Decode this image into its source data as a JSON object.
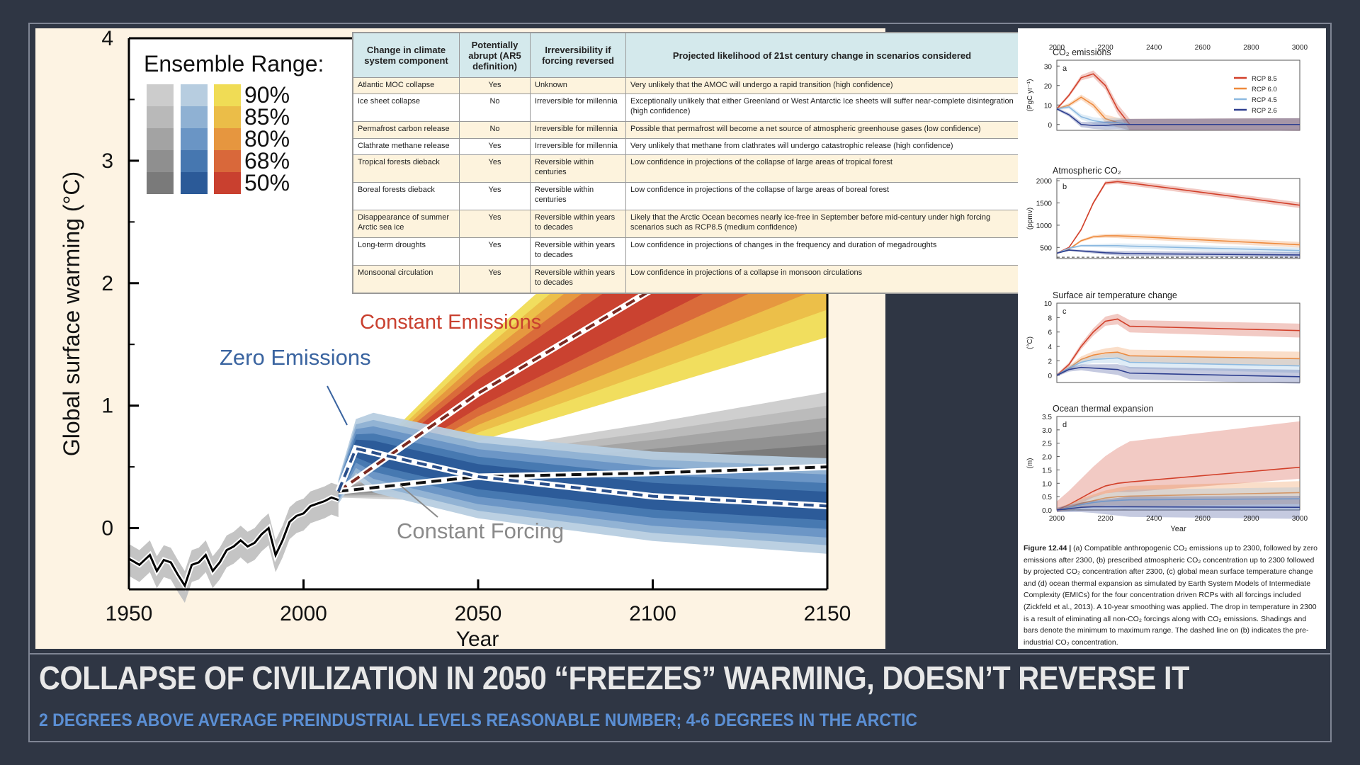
{
  "slide": {
    "title": "COLLAPSE OF CIVILIZATION IN 2050 “FREEZES” WARMING, DOESN’T REVERSE IT",
    "subtitle": "2 DEGREES ABOVE AVERAGE PREINDUSTRIAL LEVELS REASONABLE NUMBER; 4-6 DEGREES IN THE ARCTIC"
  },
  "colors": {
    "background": "#2f3644",
    "title": "#e8e8e8",
    "subtitle": "#5b8fd4",
    "warm": "#c9402f",
    "cool": "#2f5f98",
    "grey": "#8a8a8a"
  },
  "chart_data": [
    {
      "type": "line",
      "ylabel": "Global surface warming (°C)",
      "xlabel": "Year",
      "xlim": [
        1950,
        2150
      ],
      "ylim": [
        -0.5,
        4
      ],
      "x_ticks": [
        "1950",
        "2000",
        "2050",
        "2100",
        "2150"
      ],
      "y_ticks": [
        "0",
        "1",
        "2",
        "3",
        "4"
      ],
      "legend_title": "Ensemble Range:",
      "legend_levels": [
        "90%",
        "85%",
        "80%",
        "68%",
        "50%"
      ],
      "legend_palettes": {
        "grey": [
          "#cccccc",
          "#b9b9b9",
          "#a3a3a3",
          "#8f8f8f",
          "#7a7a7a"
        ],
        "blue": [
          "#b7cde0",
          "#8fb1d3",
          "#6a95c5",
          "#4677b0",
          "#2b5a98"
        ],
        "warm": [
          "#f0dc55",
          "#ebbd48",
          "#e6963f",
          "#d9683a",
          "#c9402f"
        ]
      },
      "annotations": [
        "Constant Emissions",
        "Zero Emissions",
        "Constant Forcing"
      ],
      "historical": {
        "x": [
          1950,
          1953,
          1956,
          1958,
          1960,
          1962,
          1964,
          1966,
          1968,
          1970,
          1972,
          1974,
          1976,
          1978,
          1980,
          1982,
          1984,
          1986,
          1988,
          1990,
          1992,
          1994,
          1996,
          1998,
          2000,
          2002,
          2004,
          2006,
          2008,
          2010
        ],
        "y": [
          -0.25,
          -0.3,
          -0.22,
          -0.35,
          -0.26,
          -0.28,
          -0.38,
          -0.47,
          -0.3,
          -0.28,
          -0.22,
          -0.35,
          -0.28,
          -0.18,
          -0.15,
          -0.1,
          -0.15,
          -0.12,
          -0.05,
          0.0,
          -0.22,
          -0.1,
          0.05,
          0.1,
          0.12,
          0.18,
          0.2,
          0.22,
          0.25,
          0.23
        ]
      },
      "series": [
        {
          "name": "Constant Emissions",
          "x": [
            2010,
            2050,
            2100,
            2150
          ],
          "y": [
            0.3,
            1.1,
            1.95,
            2.8
          ]
        },
        {
          "name": "Zero Emissions",
          "x": [
            2010,
            2015,
            2030,
            2050,
            2100,
            2150
          ],
          "y": [
            0.3,
            0.65,
            0.55,
            0.42,
            0.26,
            0.18
          ]
        },
        {
          "name": "Constant Forcing",
          "x": [
            2010,
            2050,
            2100,
            2150
          ],
          "y": [
            0.3,
            0.42,
            0.45,
            0.5
          ]
        }
      ]
    },
    {
      "type": "table",
      "columns": [
        "Change in climate system component",
        "Potentially abrupt (AR5 definition)",
        "Irreversibility if forcing reversed",
        "Projected likelihood of 21st century change in scenarios considered"
      ],
      "rows": [
        [
          "Atlantic MOC collapse",
          "Yes",
          "Unknown",
          "Very unlikely that the AMOC will undergo a rapid transition (high confidence)"
        ],
        [
          "Ice sheet collapse",
          "No",
          "Irreversible for millennia",
          "Exceptionally unlikely that either Greenland or West Antarctic Ice sheets will suffer near-complete disintegration (high confidence)"
        ],
        [
          "Permafrost carbon release",
          "No",
          "Irreversible for millennia",
          "Possible that permafrost will become a net source of atmospheric greenhouse gases (low confidence)"
        ],
        [
          "Clathrate methane release",
          "Yes",
          "Irreversible for millennia",
          "Very unlikely that methane from clathrates will undergo catastrophic release (high confidence)"
        ],
        [
          "Tropical forests dieback",
          "Yes",
          "Reversible within centuries",
          "Low confidence in projections of the collapse of large areas of tropical forest"
        ],
        [
          "Boreal forests dieback",
          "Yes",
          "Reversible within centuries",
          "Low confidence in projections of the collapse of large areas of boreal forest"
        ],
        [
          "Disappearance of summer Arctic sea ice",
          "Yes",
          "Reversible within years to decades",
          "Likely that the Arctic Ocean becomes nearly ice-free in September before mid-century under high forcing scenarios such as RCP8.5 (medium confidence)"
        ],
        [
          "Long-term droughts",
          "Yes",
          "Reversible within years to decades",
          "Low confidence in projections of changes in the frequency and duration of megadroughts"
        ],
        [
          "Monsoonal circulation",
          "Yes",
          "Reversible within years to decades",
          "Low confidence in projections of a collapse in monsoon circulations"
        ]
      ]
    },
    {
      "type": "line",
      "panels": [
        {
          "label": "a",
          "title": "CO₂ emissions",
          "ylabel": "(PgC yr⁻¹)",
          "yticks": [
            "0",
            "10",
            "20",
            "30"
          ],
          "ylim": [
            -3,
            33
          ]
        },
        {
          "label": "b",
          "title": "Atmospheric CO₂",
          "ylabel": "(ppmv)",
          "yticks": [
            "500",
            "1000",
            "1500",
            "2000"
          ],
          "ylim": [
            250,
            2050
          ]
        },
        {
          "label": "c",
          "title": "Surface air temperature change",
          "ylabel": "(°C)",
          "yticks": [
            "0",
            "2",
            "4",
            "6",
            "8",
            "10"
          ],
          "ylim": [
            -1,
            10
          ]
        },
        {
          "label": "d",
          "title": "Ocean thermal expansion",
          "ylabel": "(m)",
          "yticks": [
            "0.0",
            "0.5",
            "1.0",
            "1.5",
            "2.0",
            "2.5",
            "3.0",
            "3.5"
          ],
          "ylim": [
            0,
            3.5
          ]
        }
      ],
      "x_ticks": [
        "2000",
        "2200",
        "2400",
        "2600",
        "2800",
        "3000"
      ],
      "xlabel": "Year",
      "xlim": [
        2000,
        3000
      ],
      "legend": [
        "RCP 8.5",
        "RCP 6.0",
        "RCP 4.5",
        "RCP 2.6"
      ],
      "series_colors": [
        "#d2402a",
        "#ee8a3c",
        "#8cb9e0",
        "#2e3f8f"
      ],
      "series": [
        {
          "name": "RCP 8.5",
          "x": [
            2000,
            2050,
            2100,
            2150,
            2200,
            2250,
            2300,
            3000
          ],
          "emissions": [
            8,
            15,
            24,
            26,
            20,
            8,
            0,
            0
          ],
          "co2": [
            370,
            500,
            900,
            1500,
            1950,
            1980,
            1950,
            1450
          ],
          "temp": [
            0,
            1.5,
            4,
            6,
            7.5,
            7.8,
            6.8,
            6.2
          ],
          "ote": [
            0,
            0.2,
            0.45,
            0.7,
            0.9,
            1.0,
            1.05,
            1.6
          ]
        },
        {
          "name": "RCP 6.0",
          "x": [
            2000,
            2050,
            2100,
            2150,
            2200,
            2250,
            2300,
            3000
          ],
          "emissions": [
            8,
            10,
            14,
            10,
            3,
            1,
            0,
            0
          ],
          "co2": [
            370,
            460,
            650,
            740,
            760,
            760,
            750,
            560
          ],
          "temp": [
            0,
            1,
            2.2,
            2.8,
            3.1,
            3.2,
            2.7,
            2.3
          ],
          "ote": [
            0,
            0.1,
            0.25,
            0.35,
            0.45,
            0.5,
            0.52,
            0.65
          ]
        },
        {
          "name": "RCP 4.5",
          "x": [
            2000,
            2050,
            2100,
            2150,
            2200,
            2250,
            2300,
            3000
          ],
          "emissions": [
            8,
            9,
            4,
            2,
            1,
            1,
            0,
            0
          ],
          "co2": [
            370,
            480,
            540,
            540,
            540,
            540,
            530,
            430
          ],
          "temp": [
            0,
            1,
            1.8,
            2.2,
            2.3,
            2.4,
            1.8,
            1.3
          ],
          "ote": [
            0,
            0.08,
            0.2,
            0.28,
            0.33,
            0.36,
            0.38,
            0.42
          ]
        },
        {
          "name": "RCP 2.6",
          "x": [
            2000,
            2050,
            2100,
            2150,
            2200,
            2250,
            2300,
            3000
          ],
          "emissions": [
            8,
            5,
            0,
            -0.5,
            -0.5,
            0,
            0,
            0
          ],
          "co2": [
            370,
            440,
            420,
            400,
            380,
            370,
            360,
            330
          ],
          "temp": [
            0,
            0.8,
            1.1,
            1.0,
            0.9,
            0.8,
            0.3,
            -0.2
          ],
          "ote": [
            0,
            0.05,
            0.1,
            0.12,
            0.12,
            0.12,
            0.12,
            0.1
          ]
        }
      ],
      "caption_label": "Figure 12.44 |",
      "caption": "(a) Compatible anthropogenic CO₂ emissions up to 2300, followed by zero emissions after 2300, (b) prescribed atmospheric CO₂ concentration up to 2300 followed by projected CO₂ concentration after 2300, (c) global mean surface temperature change and (d) ocean thermal expansion as simulated by Earth System Models of Intermediate Complexity (EMICs) for the four concentration driven RCPs with all forcings included (Zickfeld et al., 2013). A 10-year smoothing was applied. The drop in temperature in 2300 is a result of eliminating all non-CO₂ forcings along with CO₂ emissions. Shadings and bars denote the minimum to maximum range. The dashed line on (b) indicates the pre-industrial CO₂ concentration."
    }
  ]
}
